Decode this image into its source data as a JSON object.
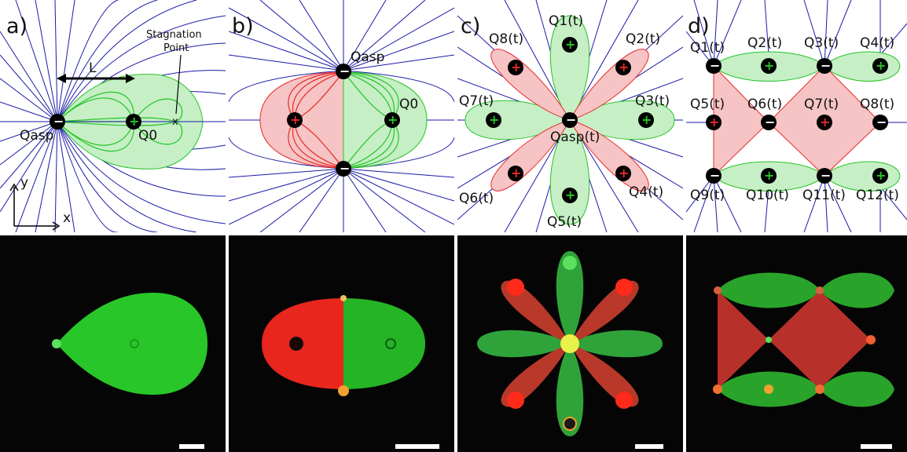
{
  "panels": {
    "a": {
      "letter": "a)",
      "L": "L",
      "stagnation_line1": "Stagnation",
      "stagnation_line2": "Point",
      "x_mark": "x",
      "q_asp": "Qasp",
      "q0": "Q0",
      "axis_y": "y",
      "axis_x": "x"
    },
    "b": {
      "letter": "b)",
      "q_asp": "Qasp",
      "q0": "Q0"
    },
    "c": {
      "letter": "c)",
      "q_labels": [
        "Q1(t)",
        "Q2(t)",
        "Q3(t)",
        "Q4(t)",
        "Q5(t)",
        "Q6(t)",
        "Q7(t)",
        "Q8(t)"
      ],
      "q_asp": "Qasp(t)"
    },
    "d": {
      "letter": "d)",
      "q_labels": [
        "Q1(t)",
        "Q2(t)",
        "Q3(t)",
        "Q4(t)",
        "Q5(t)",
        "Q6(t)",
        "Q7(t)",
        "Q8(t)",
        "Q9(t)",
        "Q10(t)",
        "Q11(t)",
        "Q12(t)"
      ]
    }
  },
  "symbols": {
    "plus": "+",
    "minus": "−"
  },
  "colors": {
    "streamline_blue": "#1a1aa8",
    "source_green": "#27c427",
    "source_red": "#e82a2a",
    "photo_bg": "#050505"
  }
}
